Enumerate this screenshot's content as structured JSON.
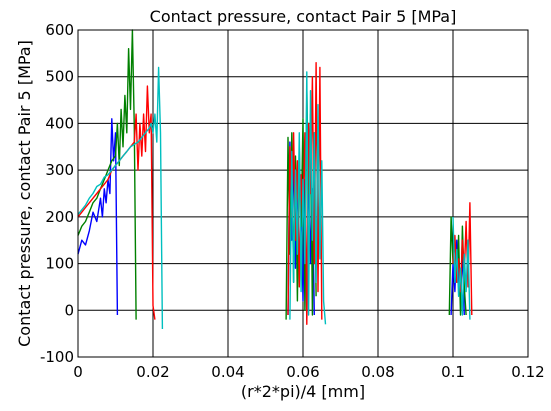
{
  "chart_data": {
    "type": "line",
    "title": "Contact pressure, contact Pair 5 [MPa]",
    "xlabel": "(r*2*pi)/4 [mm]",
    "ylabel": "Contact pressure, contact Pair 5 [MPa]",
    "xlim": [
      0,
      0.12
    ],
    "ylim": [
      -100,
      600
    ],
    "x_ticks": [
      0,
      0.02,
      0.04,
      0.06,
      0.08,
      0.1,
      0.12
    ],
    "x_tick_labels": [
      "0",
      "0.02",
      "0.04",
      "0.06",
      "0.08",
      "0.1",
      "0.12"
    ],
    "y_ticks": [
      -100,
      0,
      100,
      200,
      300,
      400,
      500,
      600
    ],
    "y_tick_labels": [
      "-100",
      "0",
      "100",
      "200",
      "300",
      "400",
      "500",
      "600"
    ],
    "grid": true,
    "legend": "none",
    "series": [
      {
        "color": "#0000ff",
        "x": [
          0,
          0.001,
          0.002,
          0.003,
          0.004,
          0.005,
          0.006,
          0.0065,
          0.007,
          0.0075,
          0.008,
          0.0085,
          0.009,
          0.0095,
          0.01,
          0.0105,
          null,
          0.056,
          0.0565,
          0.057,
          0.0575,
          0.058,
          0.0585,
          0.059,
          0.0595,
          0.06,
          0.0605,
          0.061,
          0.0615,
          0.062,
          0.0625,
          0.063,
          null,
          0.0995,
          0.1,
          0.1005,
          0.101,
          0.1015,
          0.102,
          0.1025,
          0.103
        ],
        "y": [
          120,
          150,
          140,
          170,
          210,
          190,
          240,
          200,
          260,
          230,
          280,
          250,
          410,
          320,
          380,
          -10,
          null,
          -10,
          360,
          150,
          340,
          90,
          300,
          60,
          250,
          20,
          280,
          -20,
          320,
          100,
          260,
          -10,
          null,
          -10,
          100,
          40,
          150,
          80,
          20,
          130,
          -10
        ]
      },
      {
        "color": "#008000",
        "x": [
          0,
          0.001,
          0.002,
          0.003,
          0.004,
          0.005,
          0.006,
          0.007,
          0.008,
          0.009,
          0.01,
          0.0105,
          0.011,
          0.0115,
          0.012,
          0.0125,
          0.013,
          0.0135,
          0.014,
          0.0145,
          0.015,
          0.0155,
          null,
          0.0555,
          0.056,
          0.0565,
          0.057,
          0.0575,
          0.058,
          0.0585,
          0.059,
          0.0595,
          0.06,
          0.0605,
          0.061,
          0.0615,
          0.062,
          0.0625,
          0.063,
          0.0635,
          null,
          0.099,
          0.0995,
          0.1,
          0.1005,
          0.101,
          0.1015,
          0.102,
          0.1025,
          0.103,
          0.1035
        ],
        "y": [
          160,
          180,
          190,
          210,
          230,
          240,
          260,
          280,
          300,
          320,
          330,
          400,
          310,
          430,
          350,
          460,
          380,
          560,
          430,
          600,
          390,
          -20,
          null,
          -20,
          370,
          120,
          380,
          60,
          330,
          20,
          350,
          180,
          410,
          0,
          470,
          250,
          420,
          -10,
          380,
          30,
          null,
          -10,
          200,
          100,
          150,
          60,
          160,
          -10,
          180,
          50,
          -10
        ]
      },
      {
        "color": "#ff0000",
        "x": [
          0,
          0.001,
          0.002,
          0.003,
          0.004,
          0.005,
          0.006,
          0.007,
          0.008,
          0.009,
          0.01,
          0.011,
          0.012,
          0.013,
          0.014,
          0.015,
          0.0155,
          0.016,
          0.0165,
          0.017,
          0.0175,
          0.018,
          0.0185,
          0.019,
          0.0195,
          0.02,
          0.0205,
          null,
          0.056,
          0.0565,
          0.057,
          0.0575,
          0.058,
          0.0585,
          0.059,
          0.0595,
          0.06,
          0.0605,
          0.061,
          0.0615,
          0.062,
          0.0625,
          0.063,
          0.0635,
          0.064,
          0.0645,
          0.065,
          null,
          0.1,
          0.1005,
          0.101,
          0.1015,
          0.102,
          0.1025,
          0.103,
          0.1035,
          0.104,
          0.1045,
          0.105
        ],
        "y": [
          200,
          210,
          220,
          230,
          240,
          250,
          260,
          270,
          280,
          300,
          310,
          320,
          330,
          340,
          350,
          360,
          420,
          300,
          400,
          330,
          420,
          340,
          480,
          380,
          420,
          10,
          -20,
          null,
          -10,
          350,
          200,
          380,
          150,
          320,
          50,
          290,
          200,
          380,
          -30,
          400,
          250,
          500,
          100,
          530,
          40,
          520,
          -20,
          null,
          100,
          160,
          60,
          110,
          40,
          150,
          80,
          190,
          50,
          230,
          -10
        ]
      },
      {
        "color": "#00bfbf",
        "x": [
          0,
          0.001,
          0.002,
          0.003,
          0.004,
          0.005,
          0.006,
          0.007,
          0.008,
          0.009,
          0.01,
          0.011,
          0.012,
          0.013,
          0.014,
          0.015,
          0.016,
          0.017,
          0.018,
          0.019,
          0.0195,
          0.02,
          0.0205,
          0.021,
          0.0215,
          0.022,
          0.0225,
          null,
          0.0565,
          0.057,
          0.0575,
          0.058,
          0.0585,
          0.059,
          0.0595,
          0.06,
          0.0605,
          0.061,
          0.0615,
          0.062,
          0.0625,
          0.063,
          0.0635,
          0.064,
          0.0645,
          0.065,
          0.0655,
          0.066,
          null,
          0.1,
          0.1005,
          0.101,
          0.1015,
          0.102,
          0.1025,
          0.103,
          0.1035,
          0.104,
          0.1045
        ],
        "y": [
          205,
          215,
          225,
          240,
          250,
          265,
          270,
          285,
          290,
          300,
          310,
          320,
          330,
          340,
          350,
          355,
          360,
          370,
          380,
          390,
          400,
          380,
          420,
          360,
          520,
          380,
          -40,
          null,
          -20,
          340,
          60,
          300,
          120,
          380,
          40,
          280,
          100,
          510,
          -10,
          470,
          150,
          380,
          60,
          440,
          110,
          320,
          20,
          -30,
          null,
          200,
          60,
          130,
          30,
          90,
          -10,
          120,
          40,
          150,
          -20
        ]
      }
    ]
  }
}
